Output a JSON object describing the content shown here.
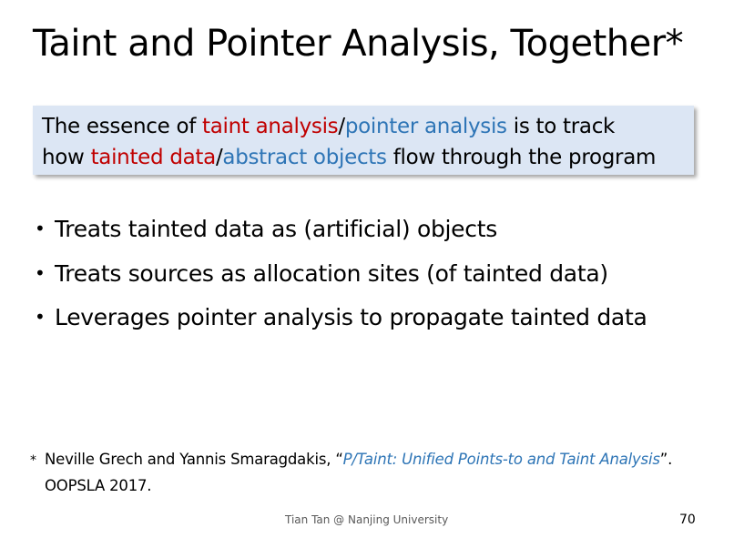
{
  "slide": {
    "title": "Taint and Pointer Analysis, Together*"
  },
  "essence": {
    "line1": {
      "prefix": "The essence of ",
      "taint_term": "taint analysis",
      "sep": "/",
      "pointer_term": "pointer analysis",
      "suffix": " is to track"
    },
    "line2": {
      "prefix": "how ",
      "taint_term": "tainted data",
      "sep": "/",
      "pointer_term": "abstract objects",
      "suffix": " flow through the program"
    }
  },
  "bullets": {
    "marker": "•",
    "items": [
      "Treats tainted data as (artificial) objects",
      "Treats sources as allocation sites (of tainted data)",
      "Leverages pointer analysis to propagate tainted data"
    ]
  },
  "footnote": {
    "marker": "*",
    "authors": "Neville Grech and Yannis Smaragdakis, “",
    "paper_title": "P/Taint: Unified Points-to and Taint Analysis",
    "closing": "”.",
    "venue": "OOPSLA 2017."
  },
  "footer": {
    "text": "Tian Tan @ Nanjing University",
    "page_number": "70"
  },
  "colors": {
    "taint": "#c00000",
    "pointer": "#2e75b6",
    "box_background": "#dce6f4"
  }
}
